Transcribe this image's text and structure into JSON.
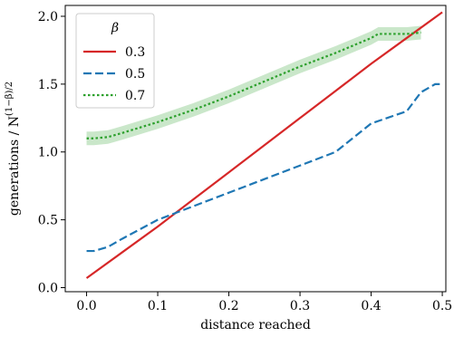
{
  "chart_data": {
    "type": "line",
    "xlabel": "distance reached",
    "ylabel": "generations / N",
    "ylabel_exponent": "(1−β)/2",
    "xlim": [
      -0.03,
      0.505
    ],
    "ylim": [
      -0.03,
      2.08
    ],
    "x_ticks": [
      0.0,
      0.1,
      0.2,
      0.3,
      0.4,
      0.5
    ],
    "x_tick_labels": [
      "0.0",
      "0.1",
      "0.2",
      "0.3",
      "0.4",
      "0.5"
    ],
    "y_ticks": [
      0.0,
      0.5,
      1.0,
      1.5,
      2.0
    ],
    "y_tick_labels": [
      "0.0",
      "0.5",
      "1.0",
      "1.5",
      "2.0"
    ],
    "grid": false,
    "legend": {
      "title": "β",
      "placement": "top-left"
    },
    "series": [
      {
        "name": "0.3",
        "color": "#d62728",
        "style": "solid",
        "x": [
          0.0,
          0.05,
          0.1,
          0.15,
          0.2,
          0.25,
          0.3,
          0.35,
          0.4,
          0.45,
          0.5
        ],
        "y": [
          0.07,
          0.26,
          0.45,
          0.65,
          0.85,
          1.05,
          1.25,
          1.45,
          1.65,
          1.84,
          2.03
        ]
      },
      {
        "name": "0.5",
        "color": "#1f77b4",
        "style": "dashed",
        "x": [
          0.0,
          0.01,
          0.03,
          0.05,
          0.1,
          0.15,
          0.2,
          0.25,
          0.3,
          0.35,
          0.4,
          0.45,
          0.47,
          0.49,
          0.5
        ],
        "y": [
          0.27,
          0.27,
          0.3,
          0.36,
          0.5,
          0.6,
          0.7,
          0.8,
          0.9,
          1.0,
          1.21,
          1.3,
          1.44,
          1.5,
          1.5
        ]
      },
      {
        "name": "0.7",
        "color": "#2ca02c",
        "style": "dotted",
        "band": 0.05,
        "x": [
          0.0,
          0.01,
          0.03,
          0.05,
          0.1,
          0.15,
          0.2,
          0.25,
          0.3,
          0.35,
          0.4,
          0.41,
          0.43,
          0.45,
          0.47
        ],
        "y": [
          1.1,
          1.1,
          1.11,
          1.14,
          1.22,
          1.31,
          1.41,
          1.52,
          1.63,
          1.73,
          1.84,
          1.87,
          1.87,
          1.87,
          1.88
        ]
      }
    ]
  }
}
